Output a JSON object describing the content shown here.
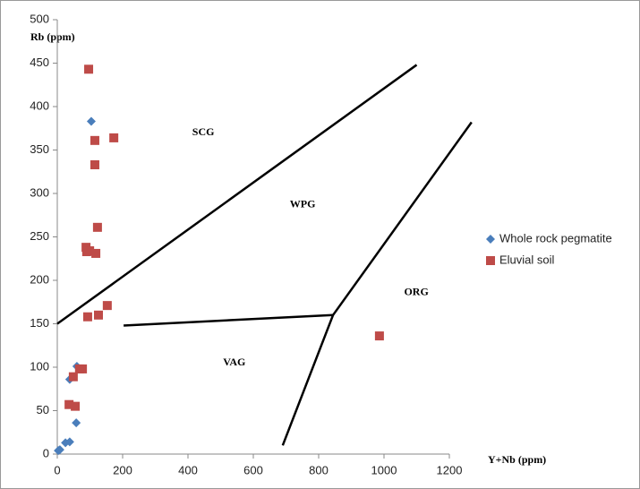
{
  "chart_data": {
    "type": "scatter",
    "x_label": "Y+Nb (ppm)",
    "y_label": "Rb (ppm)",
    "xlim": [
      0,
      1200
    ],
    "xticks": [
      0,
      200,
      400,
      600,
      800,
      1000,
      1200
    ],
    "ylim": [
      0,
      500
    ],
    "yticks": [
      0,
      50,
      100,
      150,
      200,
      250,
      300,
      350,
      400,
      450,
      500
    ],
    "series": [
      {
        "name": "Whole rock pegmatite",
        "color": "#4a7ebb",
        "marker": "diamond",
        "x": [
          104,
          60,
          38,
          58,
          25,
          38,
          3,
          8
        ],
        "y": [
          383,
          101,
          86,
          36,
          13,
          14,
          4,
          5
        ]
      },
      {
        "name": "Eluvial soil",
        "color": "#be4b48",
        "marker": "square",
        "x": [
          96,
          173,
          115,
          115,
          123,
          88,
          99,
          90,
          118,
          153,
          93,
          126,
          986,
          77,
          68,
          49,
          36,
          55
        ],
        "y": [
          443,
          364,
          361,
          333,
          261,
          238,
          234,
          233,
          231,
          171,
          158,
          160,
          136,
          98,
          98,
          89,
          57,
          55
        ]
      }
    ],
    "boundaries": [
      {
        "x": [
          0,
          1100
        ],
        "y": [
          150,
          448
        ]
      },
      {
        "x": [
          203,
          844
        ],
        "y": [
          148,
          160
        ]
      },
      {
        "x": [
          690,
          844,
          1268
        ],
        "y": [
          10,
          160,
          382
        ]
      }
    ],
    "annotations": [
      {
        "text": "SCG",
        "x": 447,
        "y": 370
      },
      {
        "text": "WPG",
        "x": 751,
        "y": 287
      },
      {
        "text": "ORG",
        "x": 1099,
        "y": 186
      },
      {
        "text": "VAG",
        "x": 542,
        "y": 105
      }
    ]
  }
}
